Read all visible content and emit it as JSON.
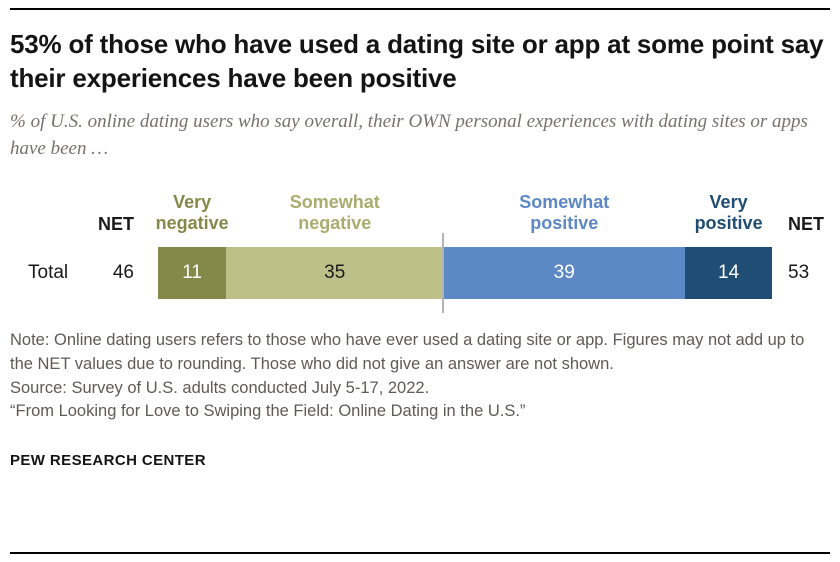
{
  "header": {
    "title": "53% of those who have used a dating site or app at some point say their experiences have been positive",
    "subtitle": "% of U.S. online dating users who say overall, their OWN personal experiences with dating sites or apps have been …"
  },
  "chart_data": {
    "type": "bar",
    "stacked": true,
    "orientation": "horizontal",
    "row_label": "Total",
    "net": {
      "left_label": "NET",
      "left_value": 46,
      "right_label": "NET",
      "right_value": 53
    },
    "divider_after_index": 1,
    "divider_color": "#b3b3b3",
    "segments": [
      {
        "label": "Very negative",
        "value": 11,
        "color": "#84894a",
        "label_color": "#84894a",
        "text_color": "#ffffff"
      },
      {
        "label": "Somewhat negative",
        "value": 35,
        "color": "#bdc088",
        "label_color": "#a9ad6e",
        "text_color": "#1a1a1a"
      },
      {
        "label": "Somewhat positive",
        "value": 39,
        "color": "#5c88c5",
        "label_color": "#5c88c5",
        "text_color": "#ffffff"
      },
      {
        "label": "Very positive",
        "value": 14,
        "color": "#204d74",
        "label_color": "#204d74",
        "text_color": "#ffffff"
      }
    ]
  },
  "footer": {
    "note": "Note: Online dating users refers to those who have ever used a dating site or app. Figures may not add up to the NET values due to rounding. Those who did not give an answer are not shown.",
    "source": "Source: Survey of U.S. adults conducted July 5-17, 2022.",
    "report": "“From Looking for Love to Swiping the Field: Online Dating in the U.S.”",
    "brand": "PEW RESEARCH CENTER"
  }
}
